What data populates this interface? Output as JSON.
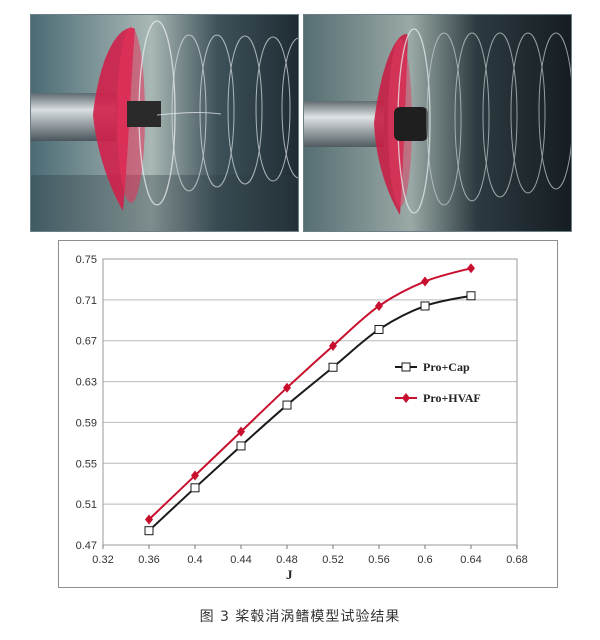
{
  "photos": [
    {
      "name": "propeller-cap-photo",
      "description_icon": "propeller-with-cap-icon"
    },
    {
      "name": "propeller-hvaf-photo",
      "description_icon": "propeller-with-hvaf-icon"
    }
  ],
  "chart_data": {
    "type": "line",
    "title": "",
    "xlabel": "J",
    "ylabel": "",
    "xlim": [
      0.32,
      0.68
    ],
    "ylim": [
      0.47,
      0.75
    ],
    "x_ticks": [
      "0.32",
      "0.36",
      "0.4",
      "0.44",
      "0.48",
      "0.52",
      "0.56",
      "0.6",
      "0.64",
      "0.68"
    ],
    "y_ticks": [
      "0.47",
      "0.51",
      "0.55",
      "0.59",
      "0.63",
      "0.67",
      "0.71",
      "0.75"
    ],
    "grid": {
      "horizontal": true,
      "vertical": false
    },
    "legend": {
      "placement": "right"
    },
    "series": [
      {
        "name": "Pro+Cap",
        "color": "#1a1a1a",
        "marker": "open-square",
        "x": [
          0.36,
          0.4,
          0.44,
          0.48,
          0.52,
          0.56,
          0.6,
          0.64
        ],
        "y": [
          0.484,
          0.526,
          0.567,
          0.607,
          0.644,
          0.681,
          0.704,
          0.714
        ]
      },
      {
        "name": "Pro+HVAF",
        "color": "#c8102e",
        "marker": "filled-diamond",
        "x": [
          0.36,
          0.4,
          0.44,
          0.48,
          0.52,
          0.56,
          0.6,
          0.64
        ],
        "y": [
          0.495,
          0.538,
          0.581,
          0.624,
          0.665,
          0.704,
          0.728,
          0.741
        ]
      }
    ]
  },
  "caption": "图 3  桨毂消涡鳍模型试验结果"
}
